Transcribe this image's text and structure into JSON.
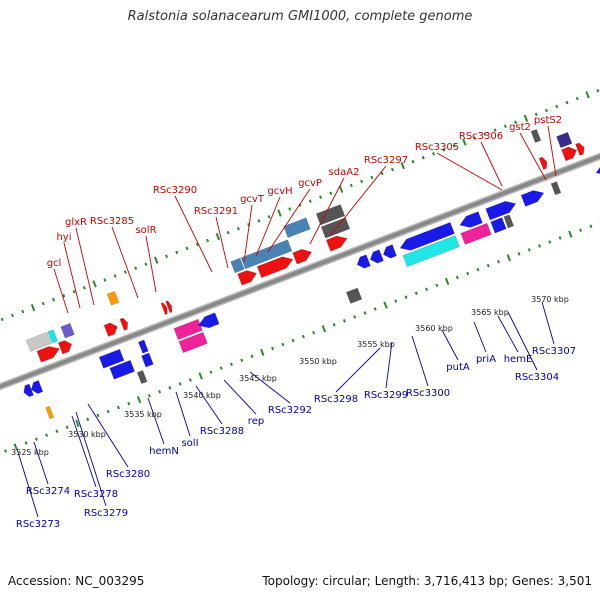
{
  "title": "Ralstonia solanacearum GMI1000, complete genome",
  "accession": "Accession: NC_003295",
  "summary": "Topology: circular; Length: 3,716,413 bp; Genes: 3,501",
  "colors": {
    "backbone": "#888888",
    "top_label": "#cc0000",
    "bottom_label": "#0000aa",
    "tick": "#2a8a2a",
    "red": "#ee1111",
    "blue": "#1a1ae6",
    "cyan": "#22e6e6",
    "magenta": "#ee2299",
    "steelblue": "#4a82b4",
    "gray": "#555555",
    "lightgray": "#c8c8c8",
    "purple": "#6a5acd",
    "darkpurple": "#3a2a8a",
    "orange": "#ff9900"
  },
  "scale": {
    "unit": "kbp",
    "ticks": [
      {
        "label": "3525 kbp"
      },
      {
        "label": "3530 kbp"
      },
      {
        "label": "3535 kbp"
      },
      {
        "label": "3540 kbp"
      },
      {
        "label": "3545 kbp"
      },
      {
        "label": "3550 kbp"
      },
      {
        "label": "3555 kbp"
      },
      {
        "label": "3560 kbp"
      },
      {
        "label": "3565 kbp"
      },
      {
        "label": "3570 kbp"
      }
    ]
  },
  "top_labels": [
    {
      "text": "gcl"
    },
    {
      "text": "hyi"
    },
    {
      "text": "glxR"
    },
    {
      "text": "RSc3285"
    },
    {
      "text": "solR"
    },
    {
      "text": "RSc3290"
    },
    {
      "text": "RSc3291"
    },
    {
      "text": "gcvT"
    },
    {
      "text": "gcvH"
    },
    {
      "text": "gcvP"
    },
    {
      "text": "sdaA2"
    },
    {
      "text": "RSc3297"
    },
    {
      "text": "RSc3305"
    },
    {
      "text": "RSc3306"
    },
    {
      "text": "gst2"
    },
    {
      "text": "pstS2"
    }
  ],
  "bottom_labels": [
    {
      "text": "RSc3273"
    },
    {
      "text": "RSc3274"
    },
    {
      "text": "RSc3278"
    },
    {
      "text": "RSc3279"
    },
    {
      "text": "RSc3280"
    },
    {
      "text": "hemN"
    },
    {
      "text": "solI"
    },
    {
      "text": "RSc3288"
    },
    {
      "text": "rep"
    },
    {
      "text": "RSc3292"
    },
    {
      "text": "RSc3298"
    },
    {
      "text": "RSc3299"
    },
    {
      "text": "RSc3300"
    },
    {
      "text": "putA"
    },
    {
      "text": "priA"
    },
    {
      "text": "hemE"
    },
    {
      "text": "RSc3304"
    },
    {
      "text": "RSc3307"
    }
  ]
}
